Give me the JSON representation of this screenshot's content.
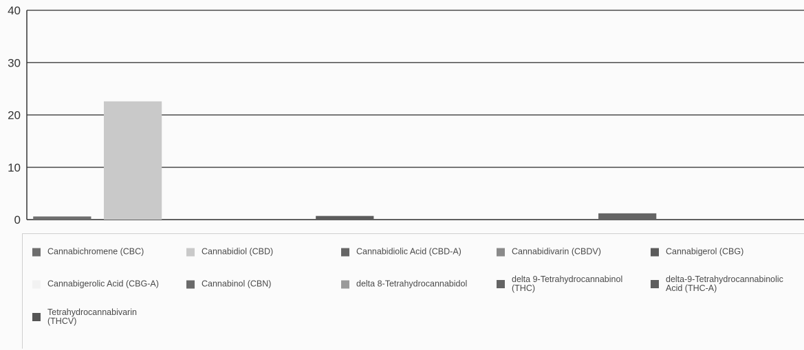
{
  "chart_data": {
    "type": "bar",
    "categories": [
      "Cannabichromene (CBC)",
      "Cannabidiol (CBD)",
      "Cannabidiolic Acid (CBD-A)",
      "Cannabidivarin (CBDV)",
      "Cannabigerol (CBG)",
      "Cannabigerolic Acid (CBG-A)",
      "Cannabinol (CBN)",
      "delta 8-Tetrahydrocannabidol",
      "delta 9-Tetrahydrocannabinol (THC)",
      "delta-9-Tetrahydrocannabinolic Acid (THC-A)",
      "Tetrahydrocannabivarin (THCV)"
    ],
    "values": [
      0.6,
      22.6,
      0,
      0,
      0.7,
      0,
      0,
      0,
      1.2,
      0,
      0
    ],
    "colors": [
      "#6e6e6e",
      "#c9c9c9",
      "#666666",
      "#8a8a8a",
      "#5c5c5c",
      "#f2f2f2",
      "#6a6a6a",
      "#9a9a9a",
      "#646464",
      "#5e5e5e",
      "#555555"
    ],
    "ylim": [
      0,
      40
    ],
    "yticks": [
      0,
      10,
      20,
      30,
      40
    ],
    "grid": true,
    "legend_position": "bottom",
    "title": "",
    "xlabel": "",
    "ylabel": ""
  }
}
